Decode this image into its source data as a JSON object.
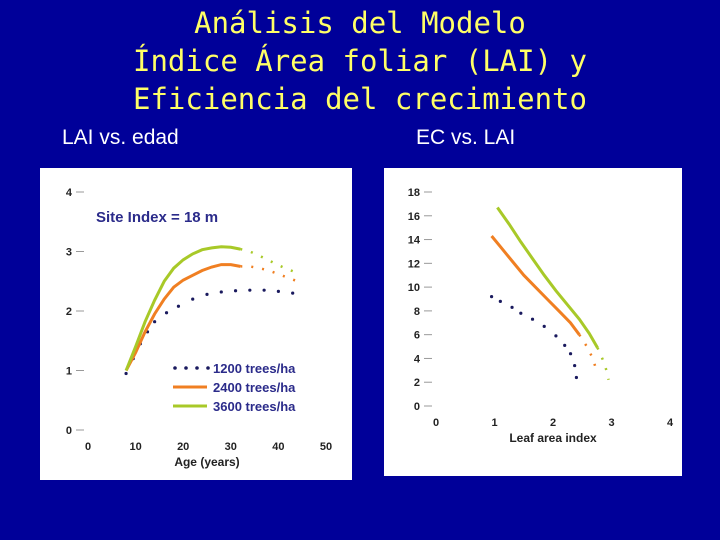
{
  "slide": {
    "title_lines": [
      "Análisis del Modelo",
      "Índice Área foliar (LAI) y",
      "Eficiencia del crecimiento"
    ],
    "subtitle_left": "LAI vs. edad",
    "subtitle_right": "EC vs. LAI"
  },
  "colors": {
    "background": "#000099",
    "title": "#ffff66",
    "series_1200": "#1a1a5e",
    "series_2400": "#f07f22",
    "series_3600": "#a8c928"
  },
  "chart_data": [
    {
      "type": "line",
      "annotation": "Site Index = 18 m",
      "xlabel": "Age (years)",
      "ylabel": "",
      "xlim": [
        0,
        50
      ],
      "ylim": [
        0,
        4
      ],
      "xticks": [
        "0",
        "10",
        "20",
        "30",
        "40",
        "50"
      ],
      "yticks": [
        "0",
        "1",
        "2",
        "3",
        "4"
      ],
      "legend_position": "bottom-left",
      "series": [
        {
          "name": "1200 trees/ha",
          "style": "dotted",
          "x": [
            8,
            9.5,
            11,
            12.5,
            14,
            16.5,
            19,
            22,
            25,
            28,
            31,
            34,
            37,
            40,
            43
          ],
          "y": [
            0.95,
            1.2,
            1.45,
            1.65,
            1.82,
            1.97,
            2.08,
            2.2,
            2.28,
            2.32,
            2.34,
            2.35,
            2.35,
            2.33,
            2.3
          ]
        },
        {
          "name": "2400 trees/ha",
          "style": "solid-dashed-tail",
          "x": [
            8,
            10,
            12,
            14,
            16,
            18,
            20,
            22,
            24,
            26,
            28,
            30,
            32,
            34,
            36,
            38,
            40,
            42,
            44
          ],
          "y": [
            1.0,
            1.3,
            1.65,
            1.95,
            2.2,
            2.4,
            2.52,
            2.6,
            2.68,
            2.74,
            2.78,
            2.78,
            2.75,
            2.75,
            2.72,
            2.68,
            2.62,
            2.56,
            2.5
          ]
        },
        {
          "name": "3600 trees/ha",
          "style": "solid-dashed-tail",
          "x": [
            8,
            10,
            12,
            14,
            16,
            18,
            20,
            22,
            24,
            26,
            28,
            30,
            32,
            34,
            36,
            38,
            40,
            42,
            44
          ],
          "y": [
            1.0,
            1.4,
            1.82,
            2.18,
            2.5,
            2.72,
            2.86,
            2.96,
            3.03,
            3.06,
            3.08,
            3.07,
            3.04,
            3.0,
            2.93,
            2.85,
            2.77,
            2.7,
            2.64
          ]
        }
      ]
    },
    {
      "type": "line",
      "xlabel": "Leaf area index",
      "ylabel": "",
      "xlim": [
        0,
        4
      ],
      "ylim": [
        0,
        18
      ],
      "xticks": [
        "0",
        "1",
        "2",
        "3",
        "4"
      ],
      "yticks": [
        "0",
        "2",
        "4",
        "6",
        "8",
        "10",
        "12",
        "14",
        "16",
        "18"
      ],
      "series": [
        {
          "name": "1200 trees/ha",
          "style": "dotted",
          "x": [
            0.95,
            1.1,
            1.3,
            1.45,
            1.65,
            1.85,
            2.05,
            2.2,
            2.3,
            2.37,
            2.4
          ],
          "y": [
            9.2,
            8.8,
            8.3,
            7.8,
            7.3,
            6.7,
            5.9,
            5.1,
            4.4,
            3.4,
            2.4
          ]
        },
        {
          "name": "2400 trees/ha",
          "style": "solid-dashed-tail",
          "x": [
            0.95,
            1.1,
            1.3,
            1.5,
            1.7,
            1.9,
            2.1,
            2.3,
            2.45,
            2.58,
            2.68,
            2.73
          ],
          "y": [
            14.3,
            13.4,
            12.2,
            11.0,
            10.0,
            9.0,
            8.0,
            7.0,
            6.0,
            5.0,
            4.0,
            3.2
          ]
        },
        {
          "name": "3600 trees/ha",
          "style": "solid-dashed-tail",
          "x": [
            1.05,
            1.25,
            1.45,
            1.65,
            1.85,
            2.05,
            2.25,
            2.45,
            2.62,
            2.76,
            2.86,
            2.92,
            2.95
          ],
          "y": [
            16.7,
            15.3,
            13.8,
            12.4,
            11.0,
            9.7,
            8.5,
            7.3,
            6.1,
            4.9,
            3.8,
            2.9,
            2.2
          ]
        }
      ]
    }
  ]
}
